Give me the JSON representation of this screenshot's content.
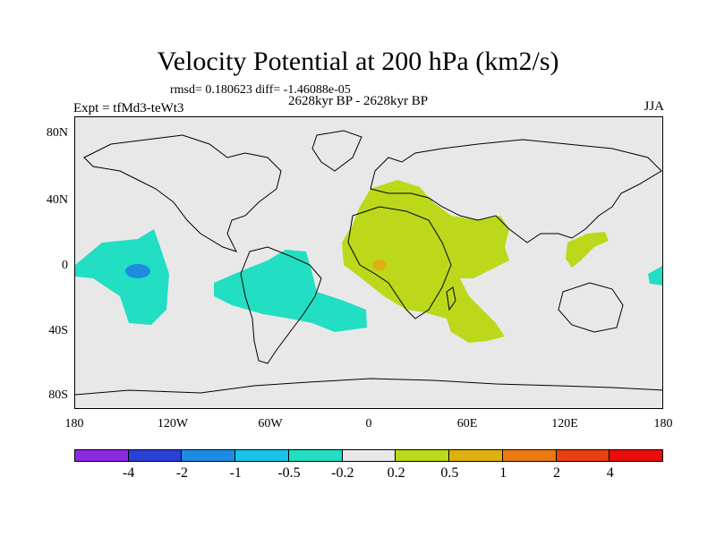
{
  "title": "Velocity Potential at 200 hPa (km2/s)",
  "subtitle": "rmsd= 0.180623 diff= -1.46088e-05",
  "left_label": "Expt = tfMd3-teWt3",
  "center_label": "2628kyr BP - 2628kyr BP",
  "right_label": "JJA",
  "lat_ticks": [
    "80N",
    "40N",
    "0",
    "40S",
    "80S"
  ],
  "lon_ticks": [
    "180",
    "120W",
    "60W",
    "0",
    "60E",
    "120E",
    "180"
  ],
  "colorbar": {
    "colors": [
      "#8a2be2",
      "#2a3fd6",
      "#1e8be0",
      "#17c3e8",
      "#22dec2",
      "#e8e8e8",
      "#bcd81a",
      "#e0b010",
      "#e87a10",
      "#e84010",
      "#e80e0e"
    ],
    "labels": [
      "-4",
      "-2",
      "-1",
      "-0.5",
      "-0.2",
      "0.2",
      "0.5",
      "1",
      "2",
      "4"
    ]
  },
  "field_colors": {
    "negative": "#22dec2",
    "negative_core": "#1e8be0",
    "positive": "#bcd81a",
    "positive_core": "#e0b010",
    "background": "#e8e8e8"
  }
}
